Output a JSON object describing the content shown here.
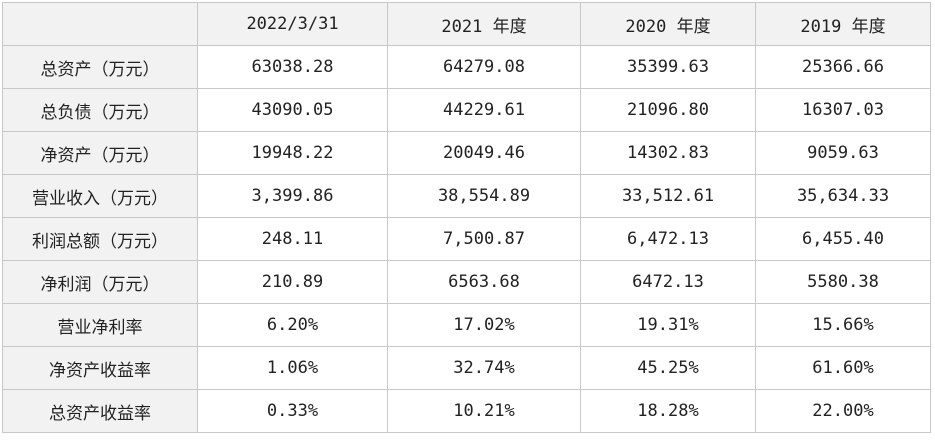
{
  "table": {
    "corner": "",
    "columns": [
      "2022/3/31",
      "2021 年度",
      "2020 年度",
      "2019 年度"
    ],
    "rows": [
      {
        "label": "总资产（万元）",
        "values": [
          "63038.28",
          "64279.08",
          "35399.63",
          "25366.66"
        ]
      },
      {
        "label": "总负债（万元）",
        "values": [
          "43090.05",
          "44229.61",
          "21096.80",
          "16307.03"
        ]
      },
      {
        "label": "净资产（万元）",
        "values": [
          "19948.22",
          "20049.46",
          "14302.83",
          "9059.63"
        ]
      },
      {
        "label": "营业收入（万元）",
        "values": [
          "3,399.86",
          "38,554.89",
          "33,512.61",
          "35,634.33"
        ]
      },
      {
        "label": "利润总额（万元）",
        "values": [
          "248.11",
          "7,500.87",
          "6,472.13",
          "6,455.40"
        ]
      },
      {
        "label": "净利润（万元）",
        "values": [
          "210.89",
          "6563.68",
          "6472.13",
          "5580.38"
        ]
      },
      {
        "label": "营业净利率",
        "values": [
          "6.20%",
          "17.02%",
          "19.31%",
          "15.66%"
        ]
      },
      {
        "label": "净资产收益率",
        "values": [
          "1.06%",
          "32.74%",
          "45.25%",
          "61.60%"
        ]
      },
      {
        "label": "总资产收益率",
        "values": [
          "0.33%",
          "10.21%",
          "18.28%",
          "22.00%"
        ]
      }
    ]
  }
}
